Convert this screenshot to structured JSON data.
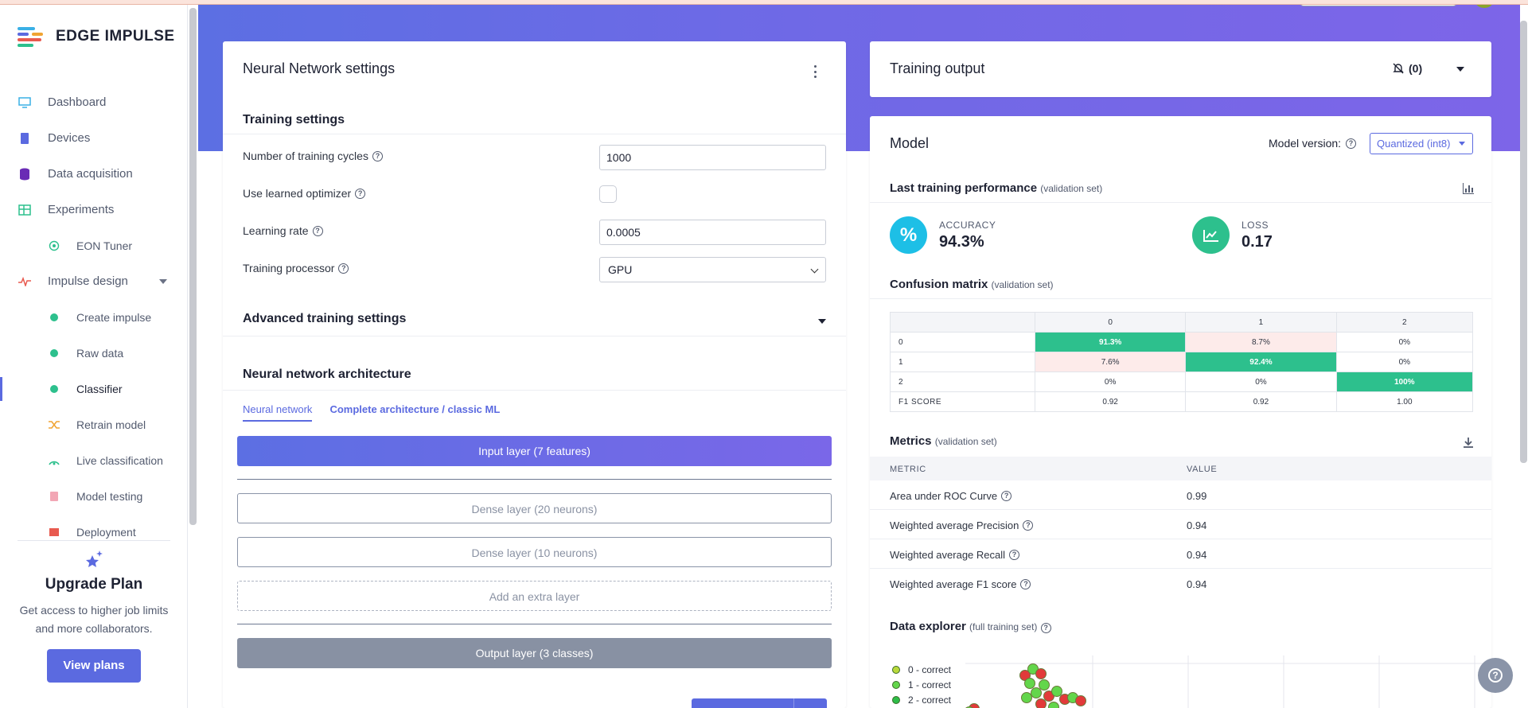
{
  "brand": {
    "name": "EDGE IMPULSE",
    "colors": {
      "accent": "#5b6ae0",
      "good": "#2dc08d",
      "bad": "#fdebea"
    }
  },
  "sidebar": {
    "items": [
      {
        "label": "Dashboard",
        "icon": "monitor-icon"
      },
      {
        "label": "Devices",
        "icon": "chip-icon"
      },
      {
        "label": "Data acquisition",
        "icon": "database-icon"
      },
      {
        "label": "Experiments",
        "icon": "table-icon"
      },
      {
        "label": "EON Tuner",
        "icon": "target-icon"
      },
      {
        "label": "Impulse design",
        "icon": "pulse-icon"
      },
      {
        "label": "Create impulse",
        "icon": "dot-icon"
      },
      {
        "label": "Raw data",
        "icon": "dot-icon"
      },
      {
        "label": "Classifier",
        "icon": "dot-icon"
      },
      {
        "label": "Retrain model",
        "icon": "shuffle-icon"
      },
      {
        "label": "Live classification",
        "icon": "signal-icon"
      },
      {
        "label": "Model testing",
        "icon": "clipboard-icon"
      },
      {
        "label": "Deployment",
        "icon": "box-icon"
      }
    ],
    "upgrade": {
      "title": "Upgrade Plan",
      "text": "Get access to higher job limits and more collaborators.",
      "button": "View plans"
    }
  },
  "nn": {
    "title": "Neural Network settings",
    "training_settings": "Training settings",
    "cycles_label": "Number of training cycles",
    "cycles_value": "1000",
    "optimizer_label": "Use learned optimizer",
    "lr_label": "Learning rate",
    "lr_value": "0.0005",
    "processor_label": "Training processor",
    "processor_value": "GPU",
    "advanced": "Advanced training settings",
    "architecture": "Neural network architecture",
    "tab1": "Neural network",
    "tab2": "Complete architecture / classic ML",
    "input_layer": "Input layer (7 features)",
    "dense1": "Dense layer (20 neurons)",
    "dense2": "Dense layer (10 neurons)",
    "add_layer": "Add an extra layer",
    "output_layer": "Output layer (3 classes)"
  },
  "training_output": {
    "title": "Training output",
    "count": "(0)"
  },
  "model": {
    "title": "Model",
    "version_label": "Model version:",
    "version_value": "Quantized (int8)",
    "last_perf": "Last training performance",
    "last_perf_note": "(validation set)",
    "accuracy_label": "ACCURACY",
    "accuracy_value": "94.3%",
    "loss_label": "LOSS",
    "loss_value": "0.17",
    "cm_title": "Confusion matrix",
    "cm_note": "(validation set)",
    "cm_cols": [
      "0",
      "1",
      "2"
    ],
    "cm_rows": [
      {
        "label": "0",
        "cells": [
          "91.3%",
          "8.7%",
          "0%"
        ]
      },
      {
        "label": "1",
        "cells": [
          "7.6%",
          "92.4%",
          "0%"
        ]
      },
      {
        "label": "2",
        "cells": [
          "0%",
          "0%",
          "100%"
        ]
      }
    ],
    "f1_label": "F1 SCORE",
    "f1_values": [
      "0.92",
      "0.92",
      "1.00"
    ],
    "metrics_title": "Metrics",
    "metrics_note": "(validation set)",
    "metric_col": "METRIC",
    "value_col": "VALUE",
    "metrics": [
      {
        "name": "Area under ROC Curve",
        "value": "0.99"
      },
      {
        "name": "Weighted average Precision",
        "value": "0.94"
      },
      {
        "name": "Weighted average Recall",
        "value": "0.94"
      },
      {
        "name": "Weighted average F1 score",
        "value": "0.94"
      }
    ],
    "explorer_title": "Data explorer",
    "explorer_note": "(full training set)",
    "legend": [
      {
        "label": "0 - correct",
        "color": "#b9d93a"
      },
      {
        "label": "1 - correct",
        "color": "#63d64b"
      },
      {
        "label": "2 - correct",
        "color": "#2ebd48"
      }
    ]
  }
}
